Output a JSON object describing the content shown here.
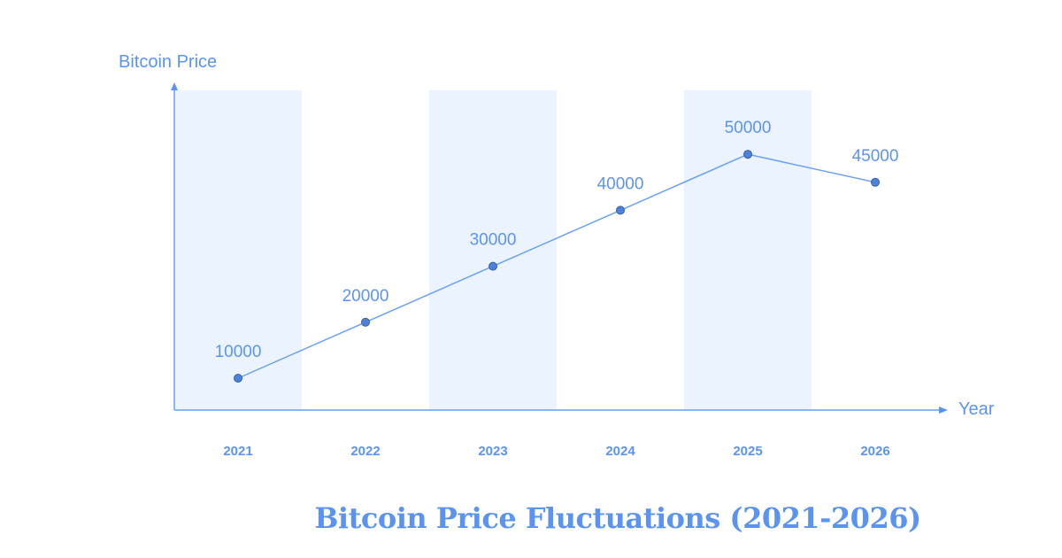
{
  "chart_data": {
    "type": "line",
    "title": "Bitcoin Price Fluctuations (2021-2026)",
    "xlabel": "Year",
    "ylabel": "Bitcoin Price",
    "categories": [
      "2021",
      "2022",
      "2023",
      "2024",
      "2025",
      "2026"
    ],
    "series": [
      {
        "name": "Bitcoin Price",
        "values": [
          10000,
          20000,
          30000,
          40000,
          50000,
          45000
        ]
      }
    ],
    "data_labels": [
      "10000",
      "20000",
      "30000",
      "40000",
      "50000",
      "45000"
    ],
    "ylim": [
      0,
      60000
    ],
    "grid": false,
    "legend": "none",
    "alternating_bands": true
  },
  "colors": {
    "accent": "#5b94f0",
    "line": "#6aa0f5",
    "band": "#ebf3fe",
    "axis": "#8db6f5",
    "point": "#4a82e0"
  }
}
